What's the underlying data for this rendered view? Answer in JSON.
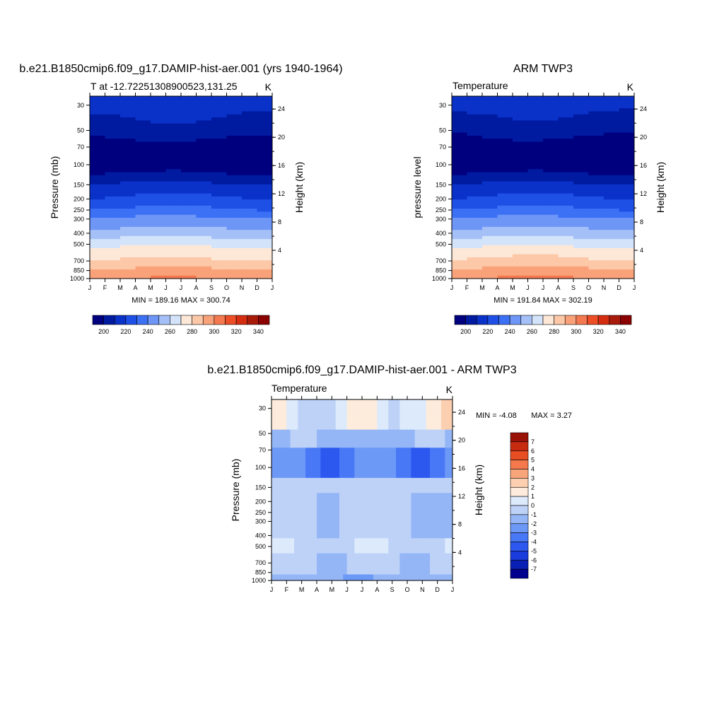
{
  "chart_data": [
    {
      "type": "heatmap",
      "title": "b.e21.B1850cmip6.f09_g17.DAMIP-hist-aer.001 (yrs 1940-1964)",
      "left_label": "T at -12.72251308900523,131.25",
      "units": "K",
      "xticks": [
        "J",
        "F",
        "M",
        "A",
        "M",
        "J",
        "J",
        "A",
        "S",
        "O",
        "N",
        "D",
        "J"
      ],
      "ylabel": "Pressure (mb)",
      "y2label": "Height (km)",
      "yticks": [
        30,
        50,
        70,
        100,
        150,
        200,
        250,
        300,
        400,
        500,
        700,
        850,
        1000
      ],
      "y2ticks": [
        24,
        20,
        16,
        12,
        8,
        4
      ],
      "stats": "MIN = 189.16 MAX = 300.74",
      "field": "abs",
      "bands": [
        {
          "p": 30,
          "t": 215
        },
        {
          "p": 50,
          "t": 205
        },
        {
          "p": 70,
          "t": 195
        },
        {
          "p": 100,
          "t": 192
        },
        {
          "p": 150,
          "t": 212
        },
        {
          "p": 200,
          "t": 222
        },
        {
          "p": 250,
          "t": 232
        },
        {
          "p": 300,
          "t": 242
        },
        {
          "p": 400,
          "t": 255
        },
        {
          "p": 500,
          "t": 268
        },
        {
          "p": 700,
          "t": 282
        },
        {
          "p": 850,
          "t": 292
        },
        {
          "p": 1000,
          "t": 300
        }
      ],
      "colorbar": {
        "labels": [
          "200",
          "220",
          "240",
          "260",
          "280",
          "300",
          "320",
          "340"
        ]
      }
    },
    {
      "type": "heatmap",
      "title": "ARM TWP3",
      "left_label": "Temperature",
      "units": "K",
      "xticks": [
        "J",
        "F",
        "M",
        "A",
        "M",
        "J",
        "J",
        "A",
        "S",
        "O",
        "N",
        "D",
        "J"
      ],
      "ylabel": "pressure level",
      "y2label": "Height (km)",
      "yticks": [
        30,
        50,
        70,
        100,
        150,
        200,
        250,
        300,
        400,
        500,
        700,
        850,
        1000
      ],
      "y2ticks": [
        24,
        20,
        16,
        12,
        8,
        4
      ],
      "stats": "MIN = 191.84 MAX = 302.19",
      "field": "abs",
      "bands": [
        {
          "p": 30,
          "t": 214
        },
        {
          "p": 50,
          "t": 204
        },
        {
          "p": 70,
          "t": 194
        },
        {
          "p": 100,
          "t": 192
        },
        {
          "p": 150,
          "t": 212
        },
        {
          "p": 200,
          "t": 222
        },
        {
          "p": 250,
          "t": 232
        },
        {
          "p": 300,
          "t": 242
        },
        {
          "p": 400,
          "t": 255
        },
        {
          "p": 500,
          "t": 268
        },
        {
          "p": 700,
          "t": 283
        },
        {
          "p": 850,
          "t": 293
        },
        {
          "p": 1000,
          "t": 301
        }
      ],
      "colorbar": {
        "labels": [
          "200",
          "220",
          "240",
          "260",
          "280",
          "300",
          "320",
          "340"
        ]
      }
    },
    {
      "type": "heatmap",
      "title": "b.e21.B1850cmip6.f09_g17.DAMIP-hist-aer.001 - ARM TWP3",
      "left_label": "Temperature",
      "units": "K",
      "xticks": [
        "J",
        "F",
        "M",
        "A",
        "M",
        "J",
        "J",
        "A",
        "S",
        "O",
        "N",
        "D",
        "J"
      ],
      "ylabel": "Pressure (mb)",
      "y2label": "Height (km)",
      "yticks": [
        30,
        50,
        70,
        100,
        150,
        200,
        250,
        300,
        400,
        500,
        700,
        850,
        1000
      ],
      "y2ticks": [
        24,
        20,
        16,
        12,
        8,
        4
      ],
      "stats_min": "MIN =  -4.08",
      "stats_max": "MAX =   3.27",
      "field": "diff",
      "colorbar": {
        "labels": [
          "7",
          "6",
          "5",
          "4",
          "3",
          "2",
          "1",
          "0",
          "-1",
          "-2",
          "-3",
          "-4",
          "-5",
          "-6",
          "-7"
        ]
      }
    }
  ],
  "colors": {
    "abs_palette": [
      "#00007f",
      "#001aa0",
      "#0a32c8",
      "#1e50e6",
      "#3c70f5",
      "#6e96f7",
      "#a5c0f7",
      "#d3e4fa",
      "#fde8d8",
      "#fcc8a8",
      "#f9a27a",
      "#f57950",
      "#ee4e26",
      "#d42d10",
      "#a81a0a",
      "#8b0000"
    ],
    "diff_palette": [
      "#00008f",
      "#0a20b4",
      "#1a3cdc",
      "#2c58f0",
      "#4878f6",
      "#6c98f6",
      "#94b6f6",
      "#bed2f8",
      "#dceafc",
      "#fdebdc",
      "#fccfb0",
      "#f9a57c",
      "#f47a4e",
      "#e84e24",
      "#c82c10",
      "#9a1206"
    ]
  }
}
